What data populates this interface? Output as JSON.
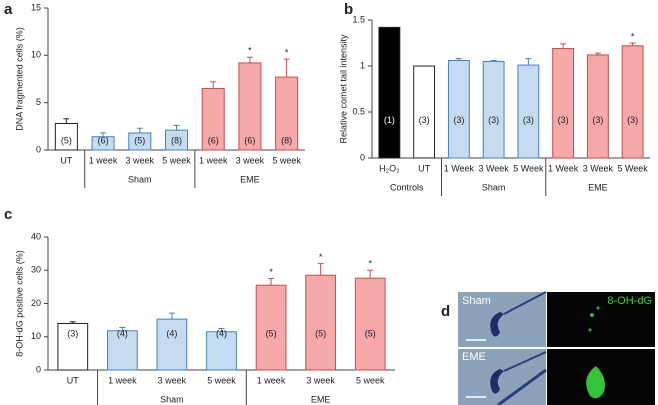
{
  "chart_data": [
    {
      "type": "bar",
      "panel_label": "a",
      "ylabel": "DNA fragmented cells (%)",
      "ylim": [
        0,
        15
      ],
      "yticks": [
        0,
        5,
        10,
        15
      ],
      "groups": [
        {
          "categories": [
            "UT"
          ],
          "values": [
            2.8
          ],
          "errors": [
            0.5
          ],
          "n_labels": [
            "(5)"
          ],
          "markers": [
            null
          ],
          "colors": [
            "#ffffff"
          ],
          "edge": "#222222"
        },
        {
          "label": "Sham",
          "categories": [
            "1 week",
            "3 week",
            "5 week"
          ],
          "values": [
            1.4,
            1.8,
            2.1
          ],
          "errors": [
            0.4,
            0.5,
            0.5
          ],
          "n_labels": [
            "(6)",
            "(5)",
            "(8)"
          ],
          "markers": [
            null,
            null,
            null
          ],
          "colors": [
            "#c5dcf0",
            "#c5dcf0",
            "#c5dcf0"
          ],
          "edge": "#4a7ebb"
        },
        {
          "label": "EME",
          "categories": [
            "1 week",
            "3 week",
            "5 week"
          ],
          "values": [
            6.5,
            9.2,
            7.7
          ],
          "errors": [
            0.7,
            0.6,
            1.9
          ],
          "n_labels": [
            "(6)",
            "(6)",
            "(8)"
          ],
          "markers": [
            null,
            "*",
            "*"
          ],
          "colors": [
            "#f7a8a8",
            "#f7a8a8",
            "#f7a8a8"
          ],
          "edge": "#c0504d"
        }
      ]
    },
    {
      "type": "bar",
      "panel_label": "b",
      "ylabel": "Relative comet tail intensity",
      "ylim": [
        0,
        1.5
      ],
      "yticks": [
        0,
        0.5,
        1,
        1.5
      ],
      "groups": [
        {
          "label": "Controls",
          "categories": [
            "H₂O₂",
            "UT"
          ],
          "values": [
            1.42,
            1.0
          ],
          "errors": [
            null,
            null
          ],
          "n_labels": [
            "(1)",
            "(3)"
          ],
          "markers": [
            null,
            null
          ],
          "colors": [
            "#000000",
            "#ffffff"
          ],
          "n_label_colors": [
            "#ffffff",
            "#222222"
          ],
          "edge": "#222222"
        },
        {
          "label": "Sham",
          "categories": [
            "1 Week",
            "3 Week",
            "5 Week"
          ],
          "values": [
            1.06,
            1.05,
            1.01
          ],
          "errors": [
            0.02,
            0.01,
            0.07
          ],
          "n_labels": [
            "(3)",
            "(3)",
            "(3)"
          ],
          "markers": [
            null,
            null,
            null
          ],
          "colors": [
            "#c5dcf0",
            "#c5dcf0",
            "#c5dcf0"
          ],
          "edge": "#4a7ebb"
        },
        {
          "label": "EME",
          "categories": [
            "1 Week",
            "3 Week",
            "5 Week"
          ],
          "values": [
            1.19,
            1.12,
            1.22
          ],
          "errors": [
            0.05,
            0.02,
            0.03
          ],
          "n_labels": [
            "(3)",
            "(3)",
            "(3)"
          ],
          "markers": [
            null,
            null,
            "*"
          ],
          "colors": [
            "#f7a8a8",
            "#f7a8a8",
            "#f7a8a8"
          ],
          "edge": "#c0504d"
        }
      ]
    },
    {
      "type": "bar",
      "panel_label": "c",
      "ylabel": "8-OH-dG positive cells (%)",
      "ylim": [
        0,
        40
      ],
      "yticks": [
        0,
        10,
        20,
        30,
        40
      ],
      "groups": [
        {
          "categories": [
            "UT"
          ],
          "values": [
            14
          ],
          "errors": [
            0.5
          ],
          "n_labels": [
            "(3)"
          ],
          "markers": [
            null
          ],
          "colors": [
            "#ffffff"
          ],
          "edge": "#222222"
        },
        {
          "label": "Sham",
          "categories": [
            "1 week",
            "3 week",
            "5 week"
          ],
          "values": [
            11.8,
            15.3,
            11.5
          ],
          "errors": [
            1,
            1.8,
            1
          ],
          "n_labels": [
            "(4)",
            "(4)",
            "(4)"
          ],
          "markers": [
            null,
            null,
            null
          ],
          "colors": [
            "#c5dcf0",
            "#c5dcf0",
            "#c5dcf0"
          ],
          "edge": "#4a7ebb"
        },
        {
          "label": "EME",
          "categories": [
            "1 week",
            "3 week",
            "5 week"
          ],
          "values": [
            25.5,
            28.5,
            27.6
          ],
          "errors": [
            2,
            3.5,
            2.4
          ],
          "n_labels": [
            "(5)",
            "(5)",
            "(5)"
          ],
          "markers": [
            "*",
            "*",
            "*"
          ],
          "colors": [
            "#f7a8a8",
            "#f7a8a8",
            "#f7a8a8"
          ],
          "edge": "#c0504d"
        }
      ]
    }
  ],
  "image_panel": {
    "panel_label": "d",
    "top_left": "Sham",
    "bottom_left": "EME",
    "top_right": "8-OH-dG"
  }
}
